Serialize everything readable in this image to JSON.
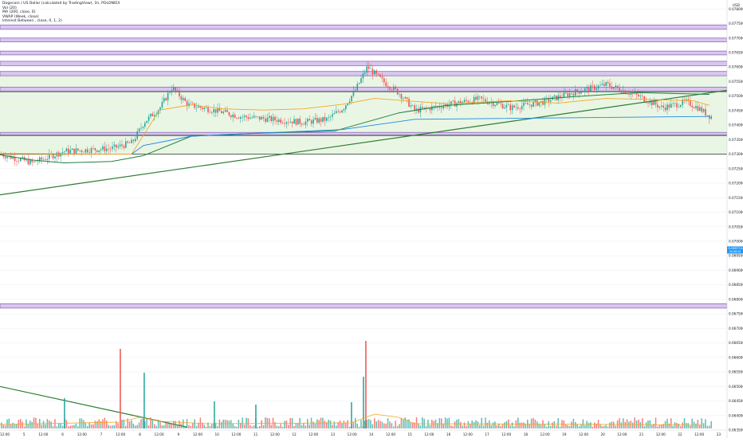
{
  "legend": {
    "title": "Dogecoin / US Dollar (calculated by TradingView), 1h, POLONIEX",
    "lines": [
      "Vol (20)",
      "MA (200, close, 0)",
      "VWAP (Week, close)",
      "Interest Between , close, 0, 1, 2)"
    ]
  },
  "price_axis": {
    "currency": "USD",
    "ticks": [
      "0.07800000",
      "0.07750000",
      "0.07700000",
      "0.07650000",
      "0.07600000",
      "0.07550000",
      "0.07500000",
      "0.07450000",
      "0.07400000",
      "0.07350000",
      "0.07300000",
      "0.07250000",
      "0.07200000",
      "0.07150000",
      "0.07100000",
      "0.07050000",
      "0.07000000",
      "0.06950000",
      "0.06900000",
      "0.06850000",
      "0.06800000",
      "0.06750000",
      "0.06700000",
      "0.06650000",
      "0.06600000",
      "0.06550000",
      "0.06500000",
      "0.06450000",
      "0.06400000",
      "0.06350000"
    ],
    "last_price": "0.06971439",
    "last_price_sub": "00:08:00"
  },
  "time_axis": {
    "ticks": [
      "12:00",
      "5",
      "12:00",
      "6",
      "12:00",
      "7",
      "12:00",
      "8",
      "12:00",
      "9",
      "12:00",
      "10",
      "12:00",
      "11",
      "12:00",
      "12",
      "12:00",
      "13",
      "12:00",
      "14",
      "12:00",
      "15",
      "12:00",
      "16",
      "12:00",
      "17",
      "12:00",
      "18",
      "12:00",
      "19",
      "12:00",
      "20",
      "12:00",
      "21",
      "12:00",
      "22",
      "12:00",
      "23"
    ]
  },
  "colors": {
    "up": "#26a69a",
    "down": "#ef5350",
    "ma200": "#1e7f3f",
    "vwap": "#f5a623",
    "trend": "#2e7d32",
    "purple_zone_fill": "#d9c6ee",
    "purple_zone_border": "#8e6bbf",
    "green_zone_fill": "#e9f6e4",
    "last_price_bg": "#2196f3",
    "axis_text": "#131722"
  },
  "chart_data": {
    "type": "candlestick",
    "title": "Dogecoin / US Dollar (calculated by TradingView), 1h, POLONIEX",
    "xlabel": "",
    "ylabel": "",
    "ylim": [
      0.0635,
      0.0782
    ],
    "ohlc_anchors": [
      {
        "x": 0,
        "close": 0.073
      },
      {
        "x": 40,
        "close": 0.0727
      },
      {
        "x": 80,
        "close": 0.0731
      },
      {
        "x": 140,
        "close": 0.0732
      },
      {
        "x": 165,
        "close": 0.0734
      },
      {
        "x": 180,
        "close": 0.0741
      },
      {
        "x": 200,
        "close": 0.0746
      },
      {
        "x": 215,
        "close": 0.0753
      },
      {
        "x": 235,
        "close": 0.0747
      },
      {
        "x": 270,
        "close": 0.0745
      },
      {
        "x": 300,
        "close": 0.0743
      },
      {
        "x": 340,
        "close": 0.0742
      },
      {
        "x": 380,
        "close": 0.0741
      },
      {
        "x": 410,
        "close": 0.0742
      },
      {
        "x": 430,
        "close": 0.0746
      },
      {
        "x": 445,
        "close": 0.0752
      },
      {
        "x": 460,
        "close": 0.076
      },
      {
        "x": 480,
        "close": 0.0755
      },
      {
        "x": 500,
        "close": 0.0751
      },
      {
        "x": 520,
        "close": 0.0745
      },
      {
        "x": 560,
        "close": 0.0747
      },
      {
        "x": 600,
        "close": 0.0749
      },
      {
        "x": 640,
        "close": 0.0746
      },
      {
        "x": 680,
        "close": 0.0748
      },
      {
        "x": 715,
        "close": 0.0751
      },
      {
        "x": 760,
        "close": 0.0754
      },
      {
        "x": 800,
        "close": 0.075
      },
      {
        "x": 830,
        "close": 0.0746
      },
      {
        "x": 860,
        "close": 0.0748
      },
      {
        "x": 875,
        "close": 0.0746
      },
      {
        "x": 890,
        "close": 0.0743
      }
    ],
    "ma200_anchors": [
      {
        "x": 0,
        "value": 0.07298
      },
      {
        "x": 40,
        "value": 0.0728
      },
      {
        "x": 80,
        "value": 0.0727
      },
      {
        "x": 140,
        "value": 0.07275
      },
      {
        "x": 180,
        "value": 0.07295
      },
      {
        "x": 240,
        "value": 0.07362
      },
      {
        "x": 320,
        "value": 0.07372
      },
      {
        "x": 420,
        "value": 0.0738
      },
      {
        "x": 500,
        "value": 0.07442
      },
      {
        "x": 560,
        "value": 0.07468
      },
      {
        "x": 640,
        "value": 0.07482
      },
      {
        "x": 720,
        "value": 0.07498
      },
      {
        "x": 800,
        "value": 0.07512
      },
      {
        "x": 860,
        "value": 0.07508
      },
      {
        "x": 890,
        "value": 0.07506
      }
    ],
    "vwap_anchors": [
      {
        "x": 0,
        "value": 0.07302
      },
      {
        "x": 165,
        "value": 0.073
      },
      {
        "x": 200,
        "value": 0.07452
      },
      {
        "x": 240,
        "value": 0.0747
      },
      {
        "x": 280,
        "value": 0.07456
      },
      {
        "x": 330,
        "value": 0.07452
      },
      {
        "x": 380,
        "value": 0.07456
      },
      {
        "x": 430,
        "value": 0.07472
      },
      {
        "x": 470,
        "value": 0.07492
      },
      {
        "x": 510,
        "value": 0.07484
      },
      {
        "x": 560,
        "value": 0.07474
      },
      {
        "x": 640,
        "value": 0.07484
      },
      {
        "x": 700,
        "value": 0.07476
      },
      {
        "x": 760,
        "value": 0.07492
      },
      {
        "x": 820,
        "value": 0.07488
      },
      {
        "x": 870,
        "value": 0.07484
      },
      {
        "x": 890,
        "value": 0.07468
      }
    ],
    "trendlines": [
      {
        "name": "rising",
        "from": {
          "x": 0,
          "price": 0.0716
        },
        "to": {
          "x": 912,
          "price": 0.0752
        }
      },
      {
        "name": "falling",
        "from": {
          "x": 0,
          "price": 0.065
        },
        "to": {
          "x": 235,
          "price": 0.0636
        }
      }
    ],
    "purple_zones": [
      [
        0.07745,
        0.0773
      ],
      [
        0.077,
        0.07687
      ],
      [
        0.07655,
        0.07642
      ],
      [
        0.0762,
        0.07605
      ],
      [
        0.07585,
        0.0757
      ],
      [
        0.07531,
        0.07517
      ],
      [
        0.07375,
        0.07364
      ],
      [
        0.06785,
        0.0677
      ]
    ],
    "green_zones": [
      [
        0.0757,
        0.07531
      ],
      [
        0.07517,
        0.07375
      ],
      [
        0.07364,
        0.073
      ]
    ],
    "horizontal_lines": [
      0.07515,
      0.073,
      0.07365
    ],
    "volume_spikes": [
      {
        "x": 150,
        "value": 1.0
      },
      {
        "x": 180,
        "value": 0.7
      },
      {
        "x": 458,
        "value": 1.1
      },
      {
        "x": 455,
        "value": 0.65
      },
      {
        "x": 80,
        "value": 0.38
      },
      {
        "x": 268,
        "value": 0.34
      },
      {
        "x": 320,
        "value": 0.3
      },
      {
        "x": 440,
        "value": 0.33
      }
    ],
    "volume_ma_anchors": [
      {
        "x": 0,
        "value": 0.05
      },
      {
        "x": 150,
        "value": 0.08
      },
      {
        "x": 175,
        "value": 0.14
      },
      {
        "x": 200,
        "value": 0.09
      },
      {
        "x": 260,
        "value": 0.06
      },
      {
        "x": 440,
        "value": 0.07
      },
      {
        "x": 470,
        "value": 0.18
      },
      {
        "x": 500,
        "value": 0.14
      },
      {
        "x": 520,
        "value": 0.06
      },
      {
        "x": 780,
        "value": 0.05
      },
      {
        "x": 880,
        "value": 0.04
      }
    ],
    "grid": true
  }
}
